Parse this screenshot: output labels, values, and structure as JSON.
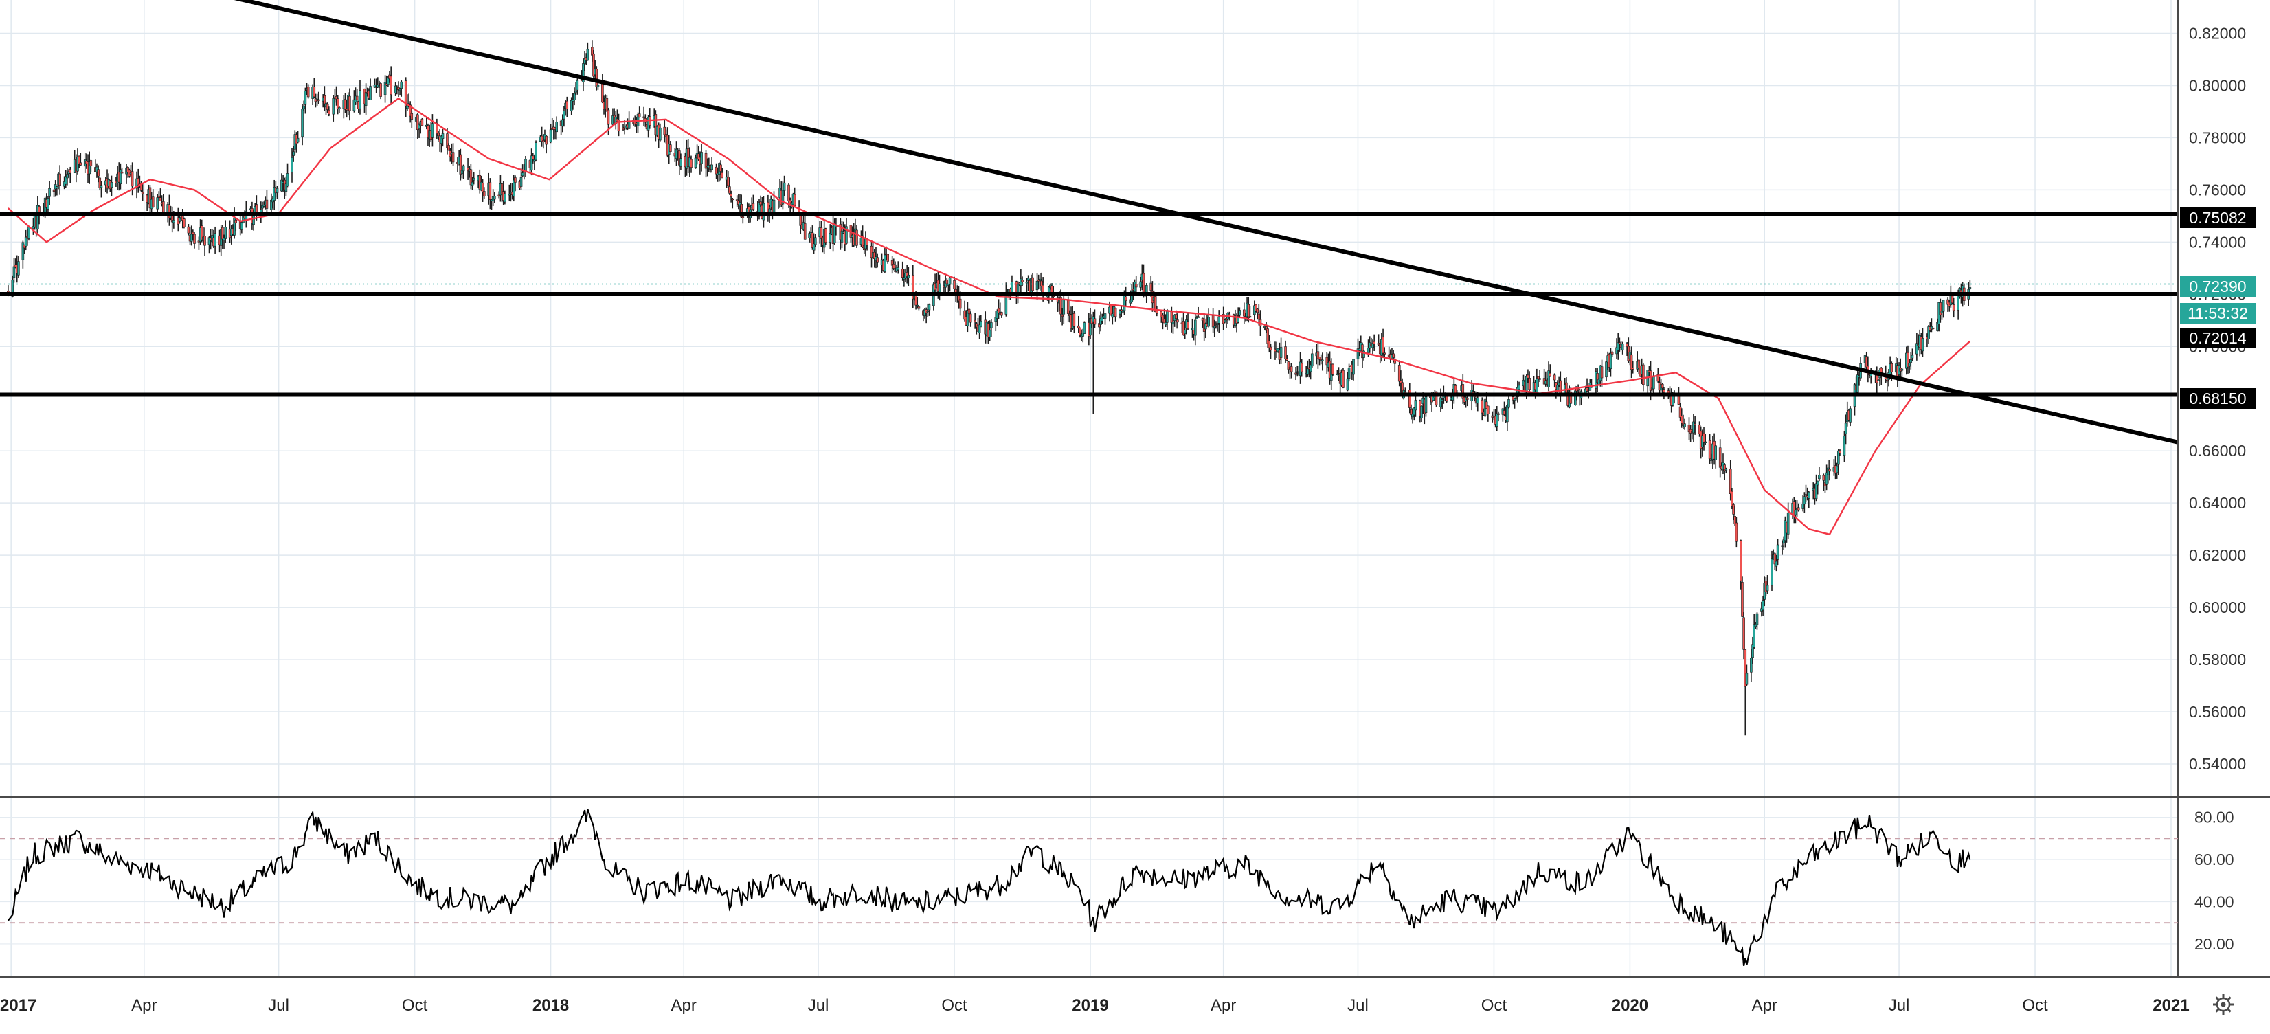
{
  "chart_data": [
    {
      "type": "candlestick",
      "title": "",
      "xlabel": "",
      "ylabel": "",
      "ylim": [
        0.53,
        0.8275
      ],
      "x_ticks": [
        "2017",
        "Apr",
        "Jul",
        "Oct",
        "2018",
        "Apr",
        "Jul",
        "Oct",
        "2019",
        "Apr",
        "Jul",
        "Oct",
        "2020",
        "Apr",
        "Jul",
        "Oct",
        "2021"
      ],
      "y_ticks": [
        "0.82000",
        "0.80000",
        "0.78000",
        "0.76000",
        "0.74000",
        "0.72000",
        "0.70000",
        "0.66000",
        "0.64000",
        "0.62000",
        "0.60000",
        "0.58000",
        "0.56000",
        "0.54000"
      ],
      "colors": {
        "up": "#26a69a",
        "down": "#ef5350",
        "ma": "#f23645",
        "line": "#000000",
        "badge": "#26a69a",
        "grid": "#e0e8ef"
      },
      "price_path": [
        [
          "2016-12-30",
          0.722
        ],
        [
          "2017-01-10",
          0.738
        ],
        [
          "2017-01-20",
          0.752
        ],
        [
          "2017-02-05",
          0.765
        ],
        [
          "2017-02-20",
          0.771
        ],
        [
          "2017-03-05",
          0.762
        ],
        [
          "2017-03-20",
          0.766
        ],
        [
          "2017-04-05",
          0.756
        ],
        [
          "2017-04-20",
          0.751
        ],
        [
          "2017-05-05",
          0.742
        ],
        [
          "2017-05-20",
          0.741
        ],
        [
          "2017-06-05",
          0.748
        ],
        [
          "2017-06-20",
          0.752
        ],
        [
          "2017-07-05",
          0.762
        ],
        [
          "2017-07-20",
          0.797
        ],
        [
          "2017-08-05",
          0.792
        ],
        [
          "2017-08-20",
          0.793
        ],
        [
          "2017-09-05",
          0.798
        ],
        [
          "2017-09-20",
          0.801
        ],
        [
          "2017-10-05",
          0.784
        ],
        [
          "2017-10-20",
          0.78
        ],
        [
          "2017-11-05",
          0.766
        ],
        [
          "2017-11-20",
          0.76
        ],
        [
          "2017-12-05",
          0.758
        ],
        [
          "2017-12-20",
          0.773
        ],
        [
          "2018-01-05",
          0.785
        ],
        [
          "2018-01-20",
          0.801
        ],
        [
          "2018-01-27",
          0.812
        ],
        [
          "2018-02-10",
          0.787
        ],
        [
          "2018-02-25",
          0.785
        ],
        [
          "2018-03-10",
          0.787
        ],
        [
          "2018-03-25",
          0.772
        ],
        [
          "2018-04-10",
          0.772
        ],
        [
          "2018-04-25",
          0.767
        ],
        [
          "2018-05-10",
          0.751
        ],
        [
          "2018-05-25",
          0.752
        ],
        [
          "2018-06-10",
          0.76
        ],
        [
          "2018-06-25",
          0.741
        ],
        [
          "2018-07-10",
          0.743
        ],
        [
          "2018-07-25",
          0.742
        ],
        [
          "2018-08-10",
          0.734
        ],
        [
          "2018-08-25",
          0.729
        ],
        [
          "2018-09-10",
          0.715
        ],
        [
          "2018-09-25",
          0.726
        ],
        [
          "2018-10-10",
          0.71
        ],
        [
          "2018-10-25",
          0.707
        ],
        [
          "2018-11-10",
          0.722
        ],
        [
          "2018-11-25",
          0.724
        ],
        [
          "2018-12-10",
          0.718
        ],
        [
          "2018-12-25",
          0.704
        ],
        [
          "2019-01-03",
          0.709
        ],
        [
          "2019-01-20",
          0.715
        ],
        [
          "2019-02-05",
          0.724
        ],
        [
          "2019-02-20",
          0.711
        ],
        [
          "2019-03-05",
          0.708
        ],
        [
          "2019-03-20",
          0.709
        ],
        [
          "2019-04-05",
          0.711
        ],
        [
          "2019-04-20",
          0.714
        ],
        [
          "2019-05-05",
          0.699
        ],
        [
          "2019-05-20",
          0.691
        ],
        [
          "2019-06-05",
          0.695
        ],
        [
          "2019-06-20",
          0.687
        ],
        [
          "2019-07-05",
          0.7
        ],
        [
          "2019-07-20",
          0.701
        ],
        [
          "2019-08-05",
          0.676
        ],
        [
          "2019-08-20",
          0.678
        ],
        [
          "2019-09-05",
          0.684
        ],
        [
          "2019-09-20",
          0.678
        ],
        [
          "2019-10-05",
          0.672
        ],
        [
          "2019-10-20",
          0.684
        ],
        [
          "2019-11-05",
          0.689
        ],
        [
          "2019-11-20",
          0.681
        ],
        [
          "2019-12-05",
          0.684
        ],
        [
          "2019-12-25",
          0.7
        ],
        [
          "2020-01-10",
          0.689
        ],
        [
          "2020-01-25",
          0.682
        ],
        [
          "2020-02-10",
          0.67
        ],
        [
          "2020-02-25",
          0.66
        ],
        [
          "2020-03-05",
          0.655
        ],
        [
          "2020-03-15",
          0.62
        ],
        [
          "2020-03-19",
          0.57
        ],
        [
          "2020-03-25",
          0.59
        ],
        [
          "2020-04-05",
          0.615
        ],
        [
          "2020-04-20",
          0.638
        ],
        [
          "2020-05-05",
          0.645
        ],
        [
          "2020-05-20",
          0.655
        ],
        [
          "2020-06-05",
          0.694
        ],
        [
          "2020-06-20",
          0.688
        ],
        [
          "2020-07-05",
          0.694
        ],
        [
          "2020-07-20",
          0.705
        ],
        [
          "2020-07-30",
          0.716
        ],
        [
          "2020-08-10",
          0.718
        ],
        [
          "2020-08-18",
          0.724
        ]
      ],
      "moving_average": [
        [
          "2016-12-30",
          0.753
        ],
        [
          "2017-01-25",
          0.74
        ],
        [
          "2017-02-25",
          0.752
        ],
        [
          "2017-04-05",
          0.764
        ],
        [
          "2017-05-05",
          0.76
        ],
        [
          "2017-06-05",
          0.748
        ],
        [
          "2017-07-01",
          0.751
        ],
        [
          "2017-08-05",
          0.776
        ],
        [
          "2017-09-20",
          0.795
        ],
        [
          "2017-11-20",
          0.772
        ],
        [
          "2017-12-31",
          0.764
        ],
        [
          "2018-02-15",
          0.786
        ],
        [
          "2018-03-20",
          0.787
        ],
        [
          "2018-05-01",
          0.772
        ],
        [
          "2018-06-05",
          0.756
        ],
        [
          "2018-07-15",
          0.746
        ],
        [
          "2018-09-15",
          0.73
        ],
        [
          "2018-10-31",
          0.719
        ],
        [
          "2018-12-15",
          0.718
        ],
        [
          "2019-02-15",
          0.714
        ],
        [
          "2019-04-15",
          0.711
        ],
        [
          "2019-06-01",
          0.702
        ],
        [
          "2019-07-25",
          0.695
        ],
        [
          "2019-09-15",
          0.686
        ],
        [
          "2019-11-01",
          0.682
        ],
        [
          "2020-01-01",
          0.687
        ],
        [
          "2020-02-01",
          0.69
        ],
        [
          "2020-03-01",
          0.68
        ],
        [
          "2020-04-01",
          0.645
        ],
        [
          "2020-05-01",
          0.63
        ],
        [
          "2020-05-15",
          0.628
        ],
        [
          "2020-06-15",
          0.66
        ],
        [
          "2020-07-15",
          0.685
        ],
        [
          "2020-08-18",
          0.702
        ]
      ],
      "horizontal_levels": [
        0.75082,
        0.7201,
        0.6815
      ],
      "trendline": {
        "start": [
          "2017-09-01",
          0.82856
        ],
        "end": [
          "2021-01-01",
          0.66329
        ]
      },
      "price_badges": {
        "resistance_upper": "0.75082",
        "current_price": "0.72390",
        "countdown": "11:53:32",
        "support_middle": "0.72014",
        "support_lower": "0.68150"
      },
      "events": [
        {
          "date": "2019-01-03",
          "low": 0.674
        },
        {
          "date": "2020-03-19",
          "low": 0.551
        }
      ]
    },
    {
      "type": "line",
      "title": "",
      "ylim": [
        5,
        88
      ],
      "y_ticks": [
        "80.00",
        "60.00",
        "40.00",
        "20.00"
      ],
      "guide_levels": [
        70,
        30
      ],
      "rsi_path": [
        [
          "2016-12-30",
          30
        ],
        [
          "2017-01-15",
          62
        ],
        [
          "2017-02-15",
          70
        ],
        [
          "2017-03-10",
          60
        ],
        [
          "2017-04-05",
          55
        ],
        [
          "2017-05-01",
          45
        ],
        [
          "2017-05-25",
          38
        ],
        [
          "2017-06-20",
          52
        ],
        [
          "2017-07-10",
          60
        ],
        [
          "2017-07-25",
          79
        ],
        [
          "2017-08-15",
          62
        ],
        [
          "2017-09-05",
          70
        ],
        [
          "2017-10-01",
          48
        ],
        [
          "2017-10-20",
          42
        ],
        [
          "2017-11-15",
          40
        ],
        [
          "2017-12-10",
          38
        ],
        [
          "2017-12-25",
          55
        ],
        [
          "2018-01-10",
          68
        ],
        [
          "2018-01-27",
          81
        ],
        [
          "2018-02-10",
          55
        ],
        [
          "2018-03-05",
          45
        ],
        [
          "2018-04-05",
          50
        ],
        [
          "2018-05-05",
          40
        ],
        [
          "2018-06-05",
          52
        ],
        [
          "2018-07-01",
          40
        ],
        [
          "2018-08-01",
          45
        ],
        [
          "2018-09-01",
          38
        ],
        [
          "2018-10-01",
          42
        ],
        [
          "2018-11-01",
          48
        ],
        [
          "2018-11-25",
          65
        ],
        [
          "2018-12-25",
          45
        ],
        [
          "2019-01-03",
          30
        ],
        [
          "2019-02-01",
          55
        ],
        [
          "2019-03-01",
          50
        ],
        [
          "2019-04-15",
          58
        ],
        [
          "2019-05-15",
          42
        ],
        [
          "2019-06-20",
          38
        ],
        [
          "2019-07-15",
          60
        ],
        [
          "2019-08-05",
          30
        ],
        [
          "2019-09-01",
          42
        ],
        [
          "2019-10-05",
          35
        ],
        [
          "2019-11-01",
          55
        ],
        [
          "2019-12-01",
          48
        ],
        [
          "2019-12-31",
          72
        ],
        [
          "2020-01-31",
          42
        ],
        [
          "2020-03-05",
          25
        ],
        [
          "2020-03-19",
          12
        ],
        [
          "2020-04-10",
          45
        ],
        [
          "2020-05-01",
          60
        ],
        [
          "2020-06-10",
          78
        ],
        [
          "2020-07-01",
          60
        ],
        [
          "2020-07-25",
          72
        ],
        [
          "2020-08-10",
          58
        ],
        [
          "2020-08-18",
          65
        ]
      ]
    }
  ]
}
